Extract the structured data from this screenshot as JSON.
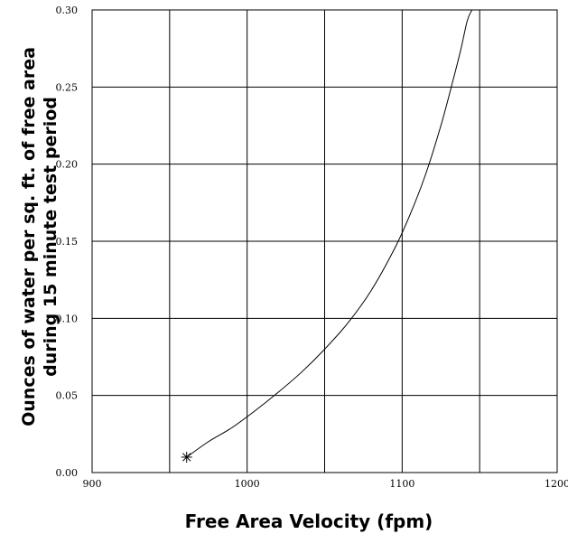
{
  "chart_data": {
    "type": "line",
    "title": "",
    "xlabel": "Free Area Velocity (fpm)",
    "ylabel_lines": [
      "Ounces of water per sq. ft. of free area",
      "during 15 minute test period"
    ],
    "xlim": [
      900,
      1200
    ],
    "ylim": [
      0.0,
      0.3
    ],
    "x_ticks": [
      900,
      1000,
      1100,
      1200
    ],
    "x_tick_labels": [
      "900",
      "1000",
      "1100",
      "1200"
    ],
    "y_ticks": [
      0.0,
      0.05,
      0.1,
      0.15,
      0.2,
      0.25,
      0.3
    ],
    "y_tick_labels": [
      "0.00",
      "0.05",
      "0.10",
      "0.15",
      "0.20",
      "0.25",
      "0.30"
    ],
    "grid": true,
    "series": [
      {
        "x": [
          961,
          975,
          990,
          1005,
          1020,
          1035,
          1050,
          1065,
          1080,
          1095,
          1105,
          1115,
          1125,
          1133,
          1138,
          1142,
          1145
        ],
        "y": [
          0.01,
          0.02,
          0.029,
          0.04,
          0.052,
          0.065,
          0.08,
          0.097,
          0.118,
          0.145,
          0.167,
          0.193,
          0.225,
          0.255,
          0.275,
          0.293,
          0.3
        ],
        "color": "#000000"
      }
    ],
    "marker": {
      "x": 961,
      "y": 0.01,
      "symbol": "asterisk"
    }
  }
}
